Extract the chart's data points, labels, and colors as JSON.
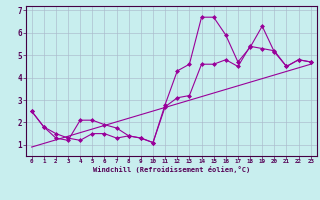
{
  "xlabel": "Windchill (Refroidissement éolien,°C)",
  "bg_color": "#c8eeee",
  "line_color": "#990099",
  "grid_color": "#aabbcc",
  "xlim": [
    -0.5,
    23.5
  ],
  "ylim": [
    0.5,
    7.2
  ],
  "ytick_vals": [
    1,
    2,
    3,
    4,
    5,
    6,
    7
  ],
  "ytick_labels": [
    "1",
    "2",
    "3",
    "4",
    "5",
    "6",
    "7"
  ],
  "xtick_vals": [
    0,
    1,
    2,
    3,
    4,
    5,
    6,
    7,
    8,
    9,
    10,
    11,
    12,
    13,
    14,
    15,
    16,
    17,
    18,
    19,
    20,
    21,
    22,
    23
  ],
  "xtick_labels": [
    "0",
    "1",
    "2",
    "3",
    "4",
    "5",
    "6",
    "7",
    "8",
    "9",
    "10",
    "11",
    "12",
    "13",
    "14",
    "15",
    "16",
    "17",
    "18",
    "19",
    "20",
    "21",
    "22",
    "23"
  ],
  "line1_x": [
    0,
    1,
    2,
    3,
    4,
    5,
    6,
    7,
    8,
    9,
    10,
    11,
    12,
    13,
    14,
    15,
    16,
    17,
    18,
    19,
    20,
    21,
    22,
    23
  ],
  "line1_y": [
    2.5,
    1.8,
    1.3,
    1.2,
    2.1,
    2.1,
    1.9,
    1.75,
    1.4,
    1.3,
    1.1,
    2.8,
    4.3,
    4.6,
    6.7,
    6.7,
    5.9,
    4.7,
    5.35,
    6.3,
    5.15,
    4.5,
    4.8,
    4.7
  ],
  "line2_x": [
    0,
    1,
    2,
    3,
    4,
    5,
    6,
    7,
    8,
    9,
    10,
    11,
    12,
    13,
    14,
    15,
    16,
    17,
    18,
    19,
    20,
    21,
    22,
    23
  ],
  "line2_y": [
    2.5,
    1.8,
    1.5,
    1.3,
    1.2,
    1.5,
    1.5,
    1.3,
    1.4,
    1.3,
    1.1,
    2.7,
    3.1,
    3.2,
    4.6,
    4.6,
    4.8,
    4.5,
    5.4,
    5.3,
    5.2,
    4.5,
    4.8,
    4.7
  ],
  "line3_x": [
    0,
    23
  ],
  "line3_y": [
    0.9,
    4.6
  ],
  "marker_style": "D",
  "marker_size": 2,
  "linewidth": 0.8
}
